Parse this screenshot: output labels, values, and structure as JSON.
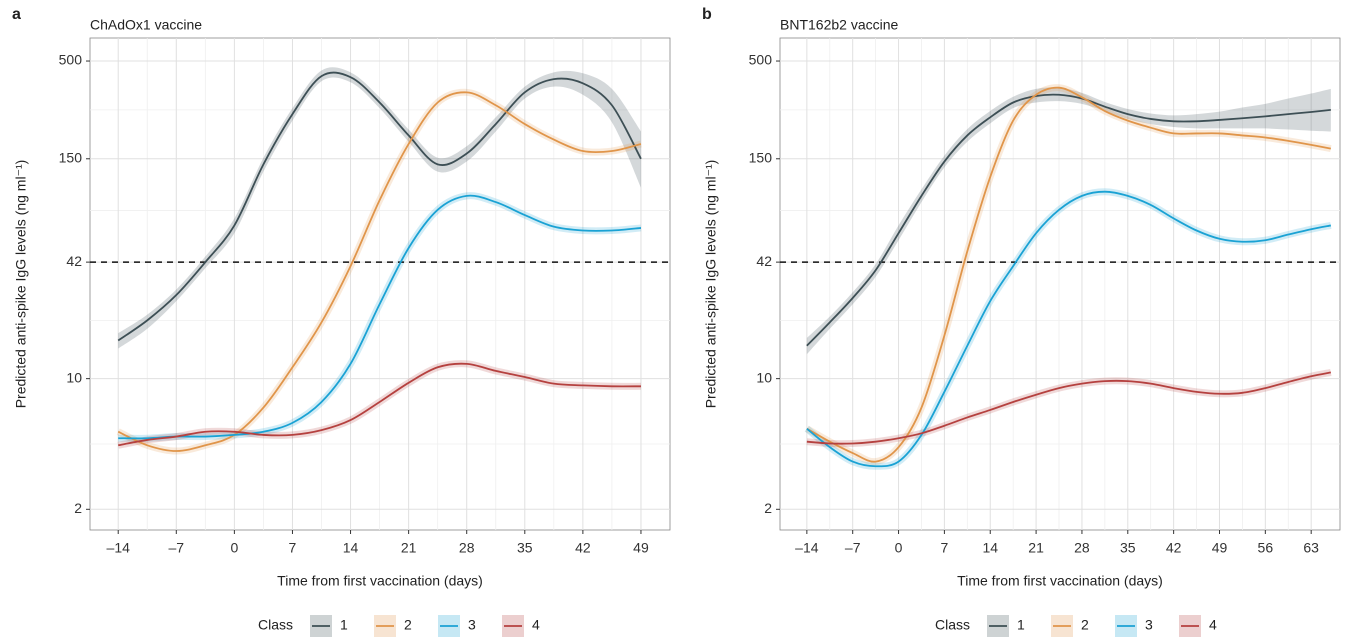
{
  "chart_data": [
    {
      "type": "line",
      "panel_label": "a",
      "title": "ChAdOx1 vaccine",
      "x_label": "Time from first vaccination (days)",
      "y_label": "Predicted anti-spike IgG levels (ng ml⁻¹)",
      "log_y": true,
      "grid": true,
      "hline": 42,
      "legend_title": "Class",
      "legend_position": "bottom",
      "xlim": [
        -17.4,
        52.5
      ],
      "ylim": [
        1.55,
        664
      ],
      "xticks": [
        {
          "value": -14,
          "label": "–14"
        },
        {
          "value": -7,
          "label": "–7"
        },
        0,
        7,
        14,
        21,
        28,
        35,
        42,
        49
      ],
      "yticks": [
        2,
        10,
        42,
        150,
        500
      ],
      "x": [
        -14,
        -10.5,
        -7,
        -3.5,
        0,
        3.5,
        7,
        10.5,
        14,
        17.5,
        21,
        24.5,
        28,
        31.5,
        35,
        38.5,
        42,
        45.5,
        49
      ],
      "series": [
        {
          "name": "1",
          "color": "#3d4f55",
          "values": [
            16,
            20.5,
            28,
            42,
            66,
            140,
            260,
            415,
            410,
            300,
            200,
            140,
            160,
            230,
            340,
            400,
            380,
            290,
            150
          ],
          "lower": [
            14.5,
            18.5,
            26,
            39,
            60,
            128,
            240,
            390,
            385,
            280,
            185,
            128,
            145,
            210,
            315,
            365,
            330,
            235,
            105
          ],
          "upper": [
            17.5,
            22,
            30,
            45,
            72,
            152,
            280,
            445,
            435,
            320,
            215,
            152,
            175,
            250,
            365,
            435,
            430,
            355,
            210
          ]
        },
        {
          "name": "2",
          "color": "#e0954a",
          "values": [
            5.2,
            4.4,
            4.1,
            4.4,
            5,
            7,
            11.5,
            20,
            40,
            90,
            180,
            300,
            340,
            290,
            230,
            190,
            165,
            165,
            180
          ]
        },
        {
          "name": "3",
          "color": "#1aa2d4",
          "values": [
            4.8,
            4.8,
            4.9,
            4.9,
            5,
            5.2,
            5.8,
            7.5,
            12,
            25,
            50,
            80,
            95,
            88,
            75,
            65,
            62,
            62,
            64
          ]
        },
        {
          "name": "4",
          "color": "#b5413f",
          "values": [
            4.4,
            4.7,
            4.9,
            5.2,
            5.2,
            5,
            5,
            5.3,
            6,
            7.5,
            9.5,
            11.5,
            12,
            11,
            10.2,
            9.4,
            9.2,
            9.1,
            9.1
          ]
        }
      ]
    },
    {
      "type": "line",
      "panel_label": "b",
      "title": "BNT162b2 vaccine",
      "x_label": "Time from first vaccination (days)",
      "y_label": "Predicted anti-spike IgG levels (ng ml⁻¹)",
      "log_y": true,
      "grid": true,
      "hline": 42,
      "legend_title": "Class",
      "legend_position": "bottom",
      "xlim": [
        -18.1,
        67.4
      ],
      "ylim": [
        1.55,
        664
      ],
      "xticks": [
        {
          "value": -14,
          "label": "–14"
        },
        {
          "value": -7,
          "label": "–7"
        },
        0,
        7,
        14,
        21,
        28,
        35,
        42,
        49,
        56,
        63
      ],
      "yticks": [
        2,
        10,
        42,
        150,
        500
      ],
      "x": [
        -14,
        -10.5,
        -7,
        -3.5,
        0,
        3.5,
        7,
        10.5,
        14,
        17.5,
        21,
        24.5,
        28,
        31.5,
        35,
        38.5,
        42,
        45.5,
        49,
        52.5,
        56,
        59.5,
        63,
        66
      ],
      "series": [
        {
          "name": "1",
          "color": "#3d4f55",
          "values": [
            15,
            20,
            27,
            38,
            60,
            95,
            145,
            200,
            250,
            300,
            325,
            330,
            315,
            285,
            260,
            245,
            238,
            238,
            242,
            247,
            253,
            260,
            267,
            274
          ],
          "lower": [
            13.5,
            18.5,
            25,
            35,
            55,
            88,
            135,
            185,
            232,
            280,
            300,
            305,
            295,
            270,
            245,
            230,
            222,
            218,
            218,
            218,
            218,
            215,
            212,
            210
          ],
          "upper": [
            16.5,
            21.5,
            29,
            41,
            66,
            103,
            156,
            216,
            270,
            322,
            355,
            360,
            338,
            302,
            277,
            262,
            256,
            260,
            268,
            282,
            295,
            315,
            335,
            355
          ]
        },
        {
          "name": "2",
          "color": "#e0954a",
          "values": [
            5.4,
            4.6,
            4,
            3.6,
            4.3,
            7,
            17,
            48,
            120,
            240,
            330,
            360,
            320,
            270,
            240,
            220,
            205,
            205,
            205,
            200,
            195,
            187,
            178,
            170
          ]
        },
        {
          "name": "3",
          "color": "#1aa2d4",
          "values": [
            5.4,
            4.3,
            3.6,
            3.4,
            3.6,
            5,
            8.5,
            15,
            26,
            40,
            60,
            80,
            95,
            100,
            95,
            85,
            72,
            62,
            56,
            54,
            55,
            59,
            63,
            66
          ]
        },
        {
          "name": "4",
          "color": "#b5413f",
          "values": [
            4.6,
            4.5,
            4.5,
            4.6,
            4.8,
            5.1,
            5.6,
            6.2,
            6.8,
            7.5,
            8.2,
            8.9,
            9.4,
            9.7,
            9.7,
            9.4,
            8.9,
            8.5,
            8.3,
            8.4,
            8.9,
            9.6,
            10.3,
            10.8
          ]
        }
      ]
    }
  ]
}
